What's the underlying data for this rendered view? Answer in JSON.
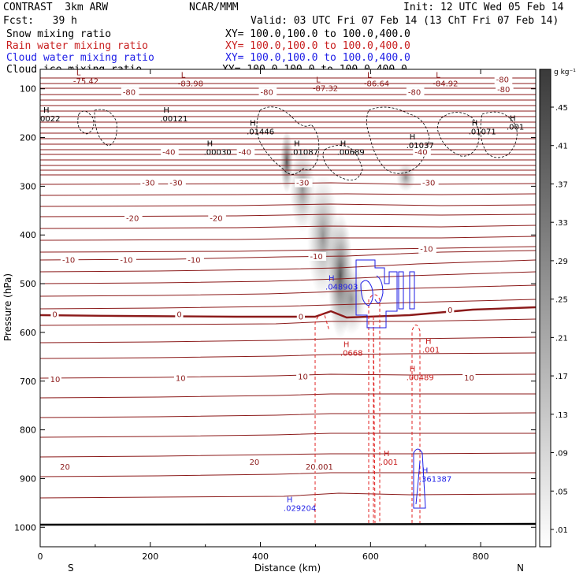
{
  "header": {
    "model": "CONTRAST  3km ARW",
    "org": "NCAR/MMM",
    "init": "Init: 12 UTC Wed 05 Feb 14",
    "fcst": "Fcst:   39 h",
    "valid": "Valid: 03 UTC Fri 07 Feb 14 (13 ChT Fri 07 Feb 14)"
  },
  "fields": [
    {
      "name": "Snow mixing ratio",
      "xy": "XY= 100.0,100.0 to 100.0,400.0",
      "color": "#000000"
    },
    {
      "name": "Rain water mixing ratio",
      "xy": "XY= 100.0,100.0 to 100.0,400.0",
      "color": "#c81e1e"
    },
    {
      "name": "Cloud water mixing ratio",
      "xy": "XY= 100.0,100.0 to 100.0,400.0",
      "color": "#1e1ee6"
    },
    {
      "name": "Cloud ice mixing ratio",
      "xy": "XY= 100.0,100.0 to 100.0,400.0",
      "color": "#000000"
    }
  ],
  "chart_data": {
    "type": "contour cross-section",
    "xlabel": "Distance (km)",
    "ylabel": "Pressure (hPa)",
    "xlim": [
      0,
      900
    ],
    "ylim": [
      1040,
      60
    ],
    "xticks": [
      0,
      200,
      400,
      600,
      800
    ],
    "yticks": [
      100,
      200,
      300,
      400,
      500,
      600,
      700,
      800,
      900,
      1000
    ],
    "left_end": "S",
    "right_end": "N",
    "colorbar": {
      "unit": "g kg⁻¹",
      "ticks": [
        ".01",
        ".05",
        ".09",
        ".13",
        ".17",
        ".21",
        ".25",
        ".29",
        ".33",
        ".37",
        ".41",
        ".45"
      ]
    },
    "temperature_contours": [
      {
        "value": -80,
        "p": 130
      },
      {
        "value": -40,
        "p": 230
      },
      {
        "value": -30,
        "p": 290
      },
      {
        "value": -20,
        "p": 370
      },
      {
        "value": -10,
        "p": 455
      },
      {
        "value": 0,
        "p": 567
      },
      {
        "value": 10,
        "p": 700
      },
      {
        "value": 20,
        "p": 885
      }
    ],
    "temperature_labels": [
      {
        "text": "-80",
        "x": 150,
        "p": 111
      },
      {
        "text": "-80",
        "x": 400,
        "p": 111
      },
      {
        "text": "-80",
        "x": 668,
        "p": 111
      },
      {
        "text": "-80",
        "x": 830,
        "p": 105
      },
      {
        "text": "-80",
        "x": 828,
        "p": 85
      },
      {
        "text": "-40",
        "x": 222,
        "p": 234
      },
      {
        "text": "-40",
        "x": 360,
        "p": 234
      },
      {
        "text": "-40",
        "x": 680,
        "p": 234
      },
      {
        "text": "-30",
        "x": 185,
        "p": 297
      },
      {
        "text": "-30",
        "x": 235,
        "p": 297
      },
      {
        "text": "-30",
        "x": 465,
        "p": 297
      },
      {
        "text": "-30",
        "x": 694,
        "p": 297
      },
      {
        "text": "-20",
        "x": 156,
        "p": 370
      },
      {
        "text": "-20",
        "x": 308,
        "p": 370
      },
      {
        "text": "-10",
        "x": 40,
        "p": 455
      },
      {
        "text": "-10",
        "x": 145,
        "p": 455
      },
      {
        "text": "-10",
        "x": 268,
        "p": 455
      },
      {
        "text": "-10",
        "x": 490,
        "p": 448
      },
      {
        "text": "-10",
        "x": 690,
        "p": 433
      },
      {
        "text": "0",
        "x": 22,
        "p": 567
      },
      {
        "text": "0",
        "x": 248,
        "p": 567
      },
      {
        "text": "0",
        "x": 469,
        "p": 572
      },
      {
        "text": "0",
        "x": 740,
        "p": 558
      },
      {
        "text": "10",
        "x": 18,
        "p": 700
      },
      {
        "text": "10",
        "x": 246,
        "p": 698
      },
      {
        "text": "10",
        "x": 468,
        "p": 695
      },
      {
        "text": "10",
        "x": 770,
        "p": 697
      },
      {
        "text": "20",
        "x": 36,
        "p": 880
      },
      {
        "text": "20",
        "x": 380,
        "p": 870
      },
      {
        "text": "20.001",
        "x": 482,
        "p": 880
      }
    ],
    "highs_lows": [
      {
        "sym": "L",
        "text": "-75.42",
        "x": 60,
        "p": 88
      },
      {
        "sym": "L",
        "text": "-83.98",
        "x": 250,
        "p": 93
      },
      {
        "sym": "L",
        "text": "-87.32",
        "x": 495,
        "p": 103
      },
      {
        "sym": "L",
        "text": "-86.64",
        "x": 588,
        "p": 93
      },
      {
        "sym": "L",
        "text": "-84.92",
        "x": 713,
        "p": 93
      },
      {
        "sym": "H",
        "text": "0022",
        "x": 0,
        "p": 165
      },
      {
        "sym": "H",
        "text": ".00121",
        "x": 218,
        "p": 165
      },
      {
        "sym": "H",
        "text": ".01446",
        "x": 375,
        "p": 192
      },
      {
        "sym": "H",
        "text": ".00030",
        "x": 297,
        "p": 234
      },
      {
        "sym": "H",
        "text": ".01087",
        "x": 455,
        "p": 234
      },
      {
        "sym": "H",
        "text": ".00689",
        "x": 539,
        "p": 234
      },
      {
        "sym": "H",
        "text": ".01037",
        "x": 665,
        "p": 220
      },
      {
        "sym": "H",
        "text": ".01071",
        "x": 778,
        "p": 192
      },
      {
        "sym": "H",
        "text": ".001",
        "x": 847,
        "p": 182
      },
      {
        "sym": "H",
        "text": ".048903",
        "x": 518,
        "p": 510
      },
      {
        "sym": "H",
        "text": ".0668",
        "x": 545,
        "p": 646
      },
      {
        "sym": "H",
        "text": ".001",
        "x": 694,
        "p": 640
      },
      {
        "sym": "H",
        "text": ".00489",
        "x": 665,
        "p": 696
      },
      {
        "sym": "H",
        "text": ".361387",
        "x": 688,
        "p": 905
      },
      {
        "sym": "H",
        "text": ".001",
        "x": 618,
        "p": 870
      },
      {
        "sym": "H",
        "text": ".029204",
        "x": 442,
        "p": 965
      }
    ]
  }
}
